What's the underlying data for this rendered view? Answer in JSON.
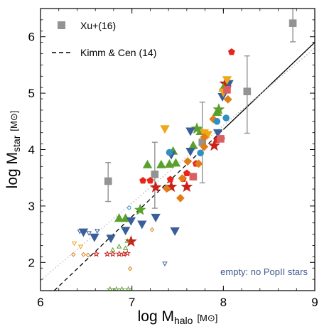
{
  "chart_data": {
    "type": "scatter",
    "xlim": [
      6,
      9
    ],
    "ylim": [
      1.5,
      6.5
    ],
    "x_ticks": [
      6,
      7,
      8,
      9
    ],
    "y_ticks": [
      2,
      3,
      4,
      5,
      6
    ],
    "xlabel": {
      "prefix": "log M",
      "sub": "halo",
      "unit": "[M⊙]"
    },
    "ylabel": {
      "prefix": "log M",
      "sub": "star",
      "unit": "[M⊙]"
    },
    "grid": false,
    "legend": {
      "placement": "top-left",
      "entries": [
        {
          "label": "Xu+(16)",
          "marker": "square",
          "color": "#939393"
        },
        {
          "label": "Kimm & Cen (14)",
          "marker": "dashed-line",
          "color": "#000000"
        }
      ]
    },
    "annotation": {
      "text": "empty: no PopII stars",
      "color": "#3e5a8c",
      "placement": "bottom-right"
    },
    "lines": [
      {
        "name": "Kimm & Cen (14)",
        "style": "dashed-then-solid",
        "color": "#000000",
        "points": [
          [
            6.15,
            1.5
          ],
          [
            9.0,
            5.9
          ]
        ],
        "solid_from_x": 8.0
      },
      {
        "style": "dotted",
        "color": "#bbbbbb",
        "points": [
          [
            6.0,
            1.68
          ],
          [
            9.0,
            5.8
          ]
        ]
      }
    ],
    "series": [
      {
        "name": "Xu+(16)",
        "marker": "square",
        "color": "#939393",
        "filled": true,
        "points": [
          {
            "x": 6.74,
            "y": 3.44,
            "ylo": 3.08,
            "yhi": 3.77
          },
          {
            "x": 7.25,
            "y": 3.56,
            "ylo": 2.96,
            "yhi": 4.13
          },
          {
            "x": 7.77,
            "y": 4.13,
            "ylo": 3.41,
            "yhi": 4.84
          },
          {
            "x": 8.26,
            "y": 5.03,
            "ylo": 4.29,
            "yhi": 5.66
          },
          {
            "x": 8.76,
            "y": 6.24,
            "ylo": 5.91,
            "yhi": 6.5
          }
        ]
      },
      {
        "marker": "pentagon",
        "color": "#e8251b",
        "filled": true,
        "points": [
          {
            "x": 7.12,
            "y": 3.45
          },
          {
            "x": 7.2,
            "y": 3.45
          },
          {
            "x": 7.42,
            "y": 3.47
          },
          {
            "x": 7.56,
            "y": 3.48
          },
          {
            "x": 7.6,
            "y": 3.58
          },
          {
            "x": 7.7,
            "y": 3.75
          },
          {
            "x": 7.93,
            "y": 4.17
          },
          {
            "x": 7.98,
            "y": 4.19
          },
          {
            "x": 8.05,
            "y": 5.11
          },
          {
            "x": 8.09,
            "y": 5.73
          }
        ]
      },
      {
        "marker": "star",
        "color": "#c8231b",
        "filled": true,
        "points": [
          {
            "x": 6.99,
            "y": 2.37
          },
          {
            "x": 7.26,
            "y": 3.33
          },
          {
            "x": 7.43,
            "y": 3.34
          },
          {
            "x": 7.6,
            "y": 3.34
          },
          {
            "x": 7.9,
            "y": 4.07
          },
          {
            "x": 8.02,
            "y": 5.17
          }
        ]
      },
      {
        "marker": "triangle-up",
        "color": "#5aa02c",
        "filled": true,
        "points": [
          {
            "x": 6.86,
            "y": 2.78
          },
          {
            "x": 6.93,
            "y": 2.78
          },
          {
            "x": 7.17,
            "y": 3.73
          },
          {
            "x": 7.32,
            "y": 3.73
          },
          {
            "x": 7.41,
            "y": 3.74
          },
          {
            "x": 7.48,
            "y": 3.76
          },
          {
            "x": 7.45,
            "y": 3.97
          },
          {
            "x": 7.67,
            "y": 4.07
          },
          {
            "x": 7.75,
            "y": 4.32
          },
          {
            "x": 7.93,
            "y": 4.66
          },
          {
            "x": 8.0,
            "y": 5.09
          }
        ]
      },
      {
        "marker": "star",
        "color": "#5aa02c",
        "filled": true,
        "points": [
          {
            "x": 7.09,
            "y": 2.93
          },
          {
            "x": 7.71,
            "y": 4.37
          },
          {
            "x": 7.95,
            "y": 4.71
          }
        ]
      },
      {
        "marker": "triangle-down",
        "color": "#3a5e9a",
        "filled": true,
        "points": [
          {
            "x": 6.47,
            "y": 2.54
          },
          {
            "x": 6.59,
            "y": 2.45
          },
          {
            "x": 6.77,
            "y": 2.43
          },
          {
            "x": 6.93,
            "y": 2.57
          },
          {
            "x": 6.99,
            "y": 2.74
          },
          {
            "x": 7.11,
            "y": 2.68
          },
          {
            "x": 7.26,
            "y": 2.8
          },
          {
            "x": 7.47,
            "y": 2.56
          },
          {
            "x": 7.43,
            "y": 3.91
          },
          {
            "x": 7.64,
            "y": 3.97
          },
          {
            "x": 7.64,
            "y": 4.33
          },
          {
            "x": 7.94,
            "y": 4.3
          },
          {
            "x": 7.99,
            "y": 4.94
          },
          {
            "x": 8.06,
            "y": 5.17
          }
        ]
      },
      {
        "marker": "triangle-down",
        "color": "#f0a818",
        "filled": true,
        "points": [
          {
            "x": 7.36,
            "y": 4.37
          },
          {
            "x": 7.79,
            "y": 4.3
          },
          {
            "x": 7.83,
            "y": 4.27
          },
          {
            "x": 8.0,
            "y": 5.02
          },
          {
            "x": 8.04,
            "y": 5.24
          }
        ]
      },
      {
        "marker": "diamond",
        "color": "#e07d18",
        "filled": true,
        "points": [
          {
            "x": 7.38,
            "y": 3.31
          },
          {
            "x": 7.53,
            "y": 3.14
          },
          {
            "x": 7.55,
            "y": 3.49
          },
          {
            "x": 7.61,
            "y": 3.79
          },
          {
            "x": 7.73,
            "y": 3.75
          },
          {
            "x": 7.79,
            "y": 4.05
          },
          {
            "x": 7.79,
            "y": 4.22
          },
          {
            "x": 7.89,
            "y": 4.54
          },
          {
            "x": 8.05,
            "y": 4.89
          }
        ]
      },
      {
        "marker": "circle",
        "color": "#3090c0",
        "filled": true,
        "points": [
          {
            "x": 7.41,
            "y": 3.95
          },
          {
            "x": 7.75,
            "y": 3.94
          },
          {
            "x": 7.93,
            "y": 4.5
          },
          {
            "x": 8.03,
            "y": 4.56
          }
        ]
      },
      {
        "marker": "square",
        "color": "#d96060",
        "filled": true,
        "points": [
          {
            "x": 7.67,
            "y": 3.52
          },
          {
            "x": 7.97,
            "y": 4.19
          },
          {
            "x": 8.04,
            "y": 5.06
          }
        ]
      },
      {
        "marker": "star",
        "color": "#c8231b",
        "filled": false,
        "points": [
          {
            "x": 6.61,
            "y": 2.15
          },
          {
            "x": 6.73,
            "y": 2.15
          },
          {
            "x": 6.79,
            "y": 2.15
          },
          {
            "x": 6.86,
            "y": 2.15
          },
          {
            "x": 6.91,
            "y": 2.15
          },
          {
            "x": 6.95,
            "y": 2.16
          }
        ]
      },
      {
        "marker": "diamond",
        "color": "#e07d18",
        "filled": false,
        "points": [
          {
            "x": 6.36,
            "y": 2.14
          },
          {
            "x": 6.47,
            "y": 2.14
          },
          {
            "x": 6.52,
            "y": 2.13
          },
          {
            "x": 6.98,
            "y": 1.89
          },
          {
            "x": 7.22,
            "y": 2.58
          }
        ]
      },
      {
        "marker": "triangle-up",
        "color": "#5aa02c",
        "filled": false,
        "points": [
          {
            "x": 6.79,
            "y": 2.22
          },
          {
            "x": 6.86,
            "y": 2.28
          },
          {
            "x": 6.95,
            "y": 2.38
          },
          {
            "x": 6.93,
            "y": 2.25
          }
        ]
      },
      {
        "marker": "star",
        "color": "#5aa02c",
        "filled": false,
        "points": [
          {
            "x": 6.76,
            "y": 1.52
          },
          {
            "x": 6.83,
            "y": 1.52
          },
          {
            "x": 6.89,
            "y": 1.52
          },
          {
            "x": 6.96,
            "y": 1.52
          }
        ]
      },
      {
        "marker": "triangle-down",
        "color": "#3a5e9a",
        "filled": false,
        "points": [
          {
            "x": 6.43,
            "y": 2.55
          },
          {
            "x": 6.53,
            "y": 2.52
          },
          {
            "x": 6.62,
            "y": 2.56
          },
          {
            "x": 7.36,
            "y": 1.98
          }
        ]
      },
      {
        "marker": "triangle-down",
        "color": "#f0a818",
        "filled": false,
        "points": [
          {
            "x": 6.37,
            "y": 2.34
          },
          {
            "x": 6.44,
            "y": 2.28
          }
        ]
      },
      {
        "marker": "circle",
        "color": "#3090c0",
        "filled": false,
        "points": [
          {
            "x": 6.97,
            "y": 2.97
          }
        ]
      }
    ]
  }
}
